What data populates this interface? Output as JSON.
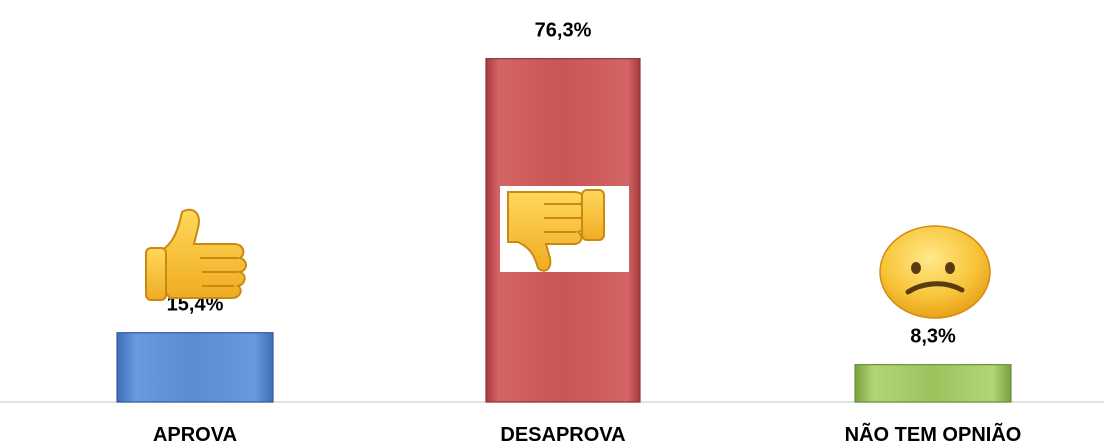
{
  "chart_data": {
    "type": "bar",
    "categories": [
      "APROVA",
      "DESAPROVA",
      "NÃO TEM OPNIÃO"
    ],
    "values": [
      15.4,
      76.3,
      8.3
    ],
    "data_labels": [
      "15,4%",
      "76,3%",
      "8,3%"
    ],
    "icons": [
      "thumbs-up-icon",
      "thumbs-down-icon",
      "confused-face-icon"
    ],
    "colors": [
      "#5B8BD0",
      "#C95556",
      "#9CC25E"
    ],
    "ylim": [
      0,
      80
    ],
    "grid": false,
    "legend": "none"
  }
}
